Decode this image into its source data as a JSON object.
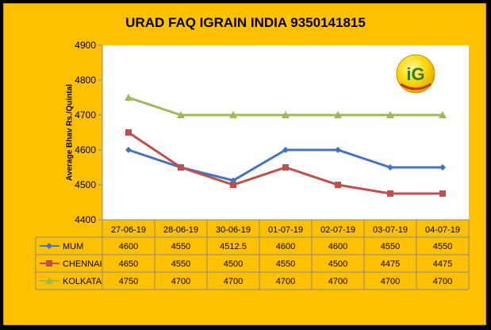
{
  "title": "URAD FAQ IGRAIN INDIA 9350141815",
  "logo_text": "iG",
  "chart_data": {
    "type": "line",
    "title": "URAD FAQ IGRAIN INDIA 9350141815",
    "ylabel": "Average Bhav Rs./Quintal",
    "xlabel": "",
    "ylim": [
      4400,
      4900
    ],
    "yticks": [
      4400,
      4500,
      4600,
      4700,
      4800,
      4900
    ],
    "grid": false,
    "legend": "data-table",
    "categories": [
      "27-06-19",
      "28-06-19",
      "30-06-19",
      "01-07-19",
      "02-07-19",
      "03-07-19",
      "04-07-19"
    ],
    "series": [
      {
        "name": "MUM",
        "color": "#4472C4",
        "marker": "diamond",
        "values": [
          4600,
          4550,
          4512.5,
          4600,
          4600,
          4550,
          4550
        ]
      },
      {
        "name": "CHENNAI",
        "color": "#C0504D",
        "marker": "square",
        "values": [
          4650,
          4550,
          4500,
          4550,
          4500,
          4475,
          4475
        ]
      },
      {
        "name": "KOLKATA",
        "color": "#9BBB59",
        "marker": "triangle",
        "values": [
          4750,
          4700,
          4700,
          4700,
          4700,
          4700,
          4700
        ]
      }
    ]
  }
}
